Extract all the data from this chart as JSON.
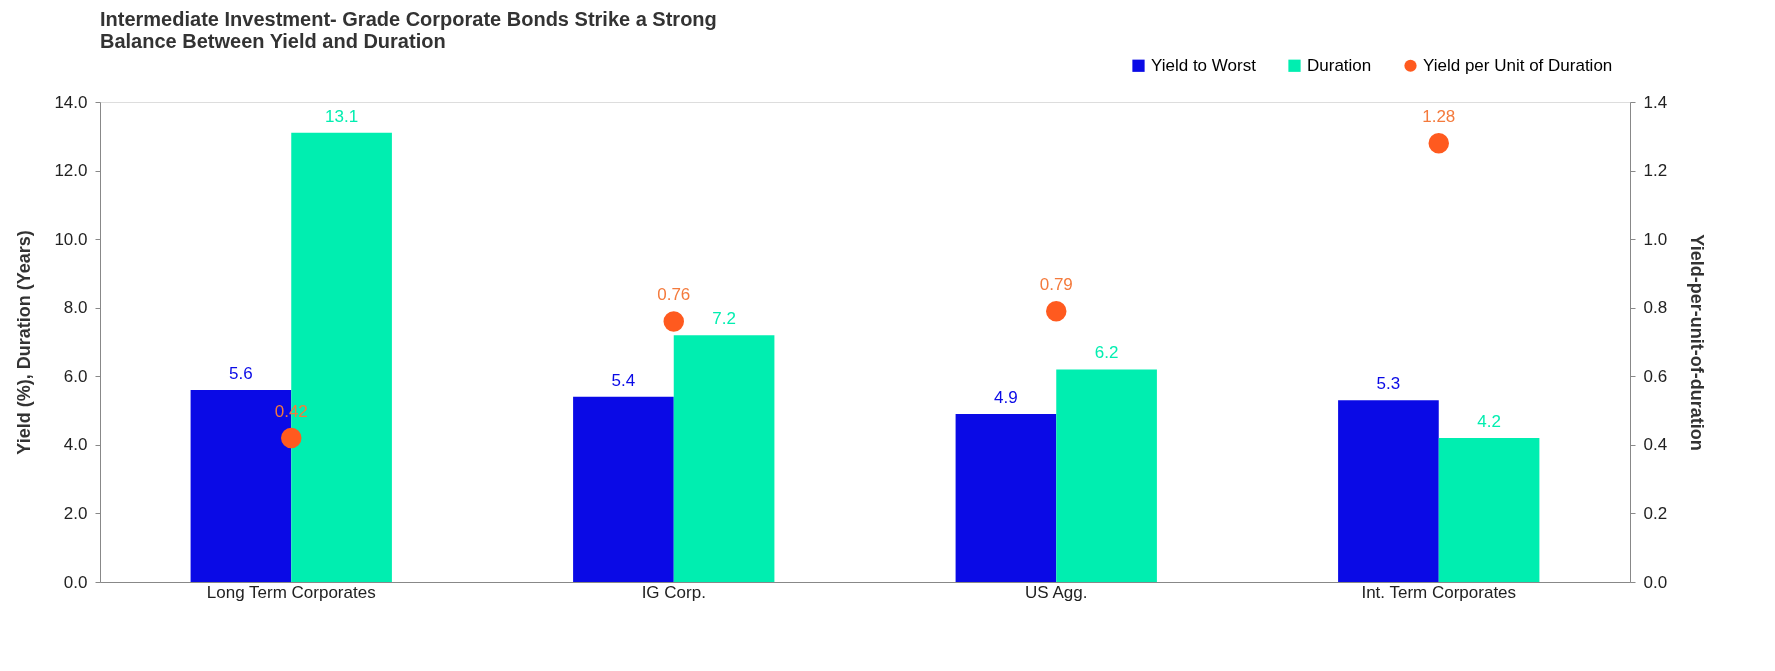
{
  "chart_data": {
    "type": "bar",
    "title": [
      "Intermediate Investment- Grade Corporate Bonds Strike a Strong",
      "Balance Between Yield and Duration"
    ],
    "categories": [
      "Long Term Corporates",
      "IG Corp.",
      "US Agg.",
      "Int. Term Corporates"
    ],
    "series": [
      {
        "name": "Yield to Worst",
        "type": "bar",
        "color": "#0a0ae6",
        "values": [
          5.6,
          5.4,
          4.9,
          5.3
        ]
      },
      {
        "name": "Duration",
        "type": "bar",
        "color": "#00eeb0",
        "values": [
          13.1,
          7.2,
          6.2,
          4.2
        ]
      },
      {
        "name": "Yield per Unit of Duration",
        "type": "scatter",
        "axis": "y2",
        "color": "#ff5a1f",
        "values": [
          0.42,
          0.76,
          0.79,
          1.28
        ]
      }
    ],
    "ylabel": "Yield (%), Duration (Years)",
    "y2label": "Yield-per-unit-of-duration",
    "ylim": [
      0,
      14
    ],
    "yticks": [
      {
        "value": 0,
        "label": "0.0"
      },
      {
        "value": 2,
        "label": "2.0"
      },
      {
        "value": 4,
        "label": "4.0"
      },
      {
        "value": 6,
        "label": "6.0"
      },
      {
        "value": 8,
        "label": "8.0"
      },
      {
        "value": 10,
        "label": "10.0"
      },
      {
        "value": 12,
        "label": "12.0"
      },
      {
        "value": 14,
        "label": "14.0"
      }
    ],
    "y2lim": [
      0,
      1.4
    ],
    "y2ticks": [
      {
        "value": 0,
        "label": "0.0"
      },
      0.2,
      0.4,
      0.6,
      0.8,
      {
        "value": 1,
        "label": "1.0"
      },
      1.2,
      1.4
    ],
    "data_labels": true,
    "legend": "top right",
    "grid": false,
    "marker": "circle"
  }
}
